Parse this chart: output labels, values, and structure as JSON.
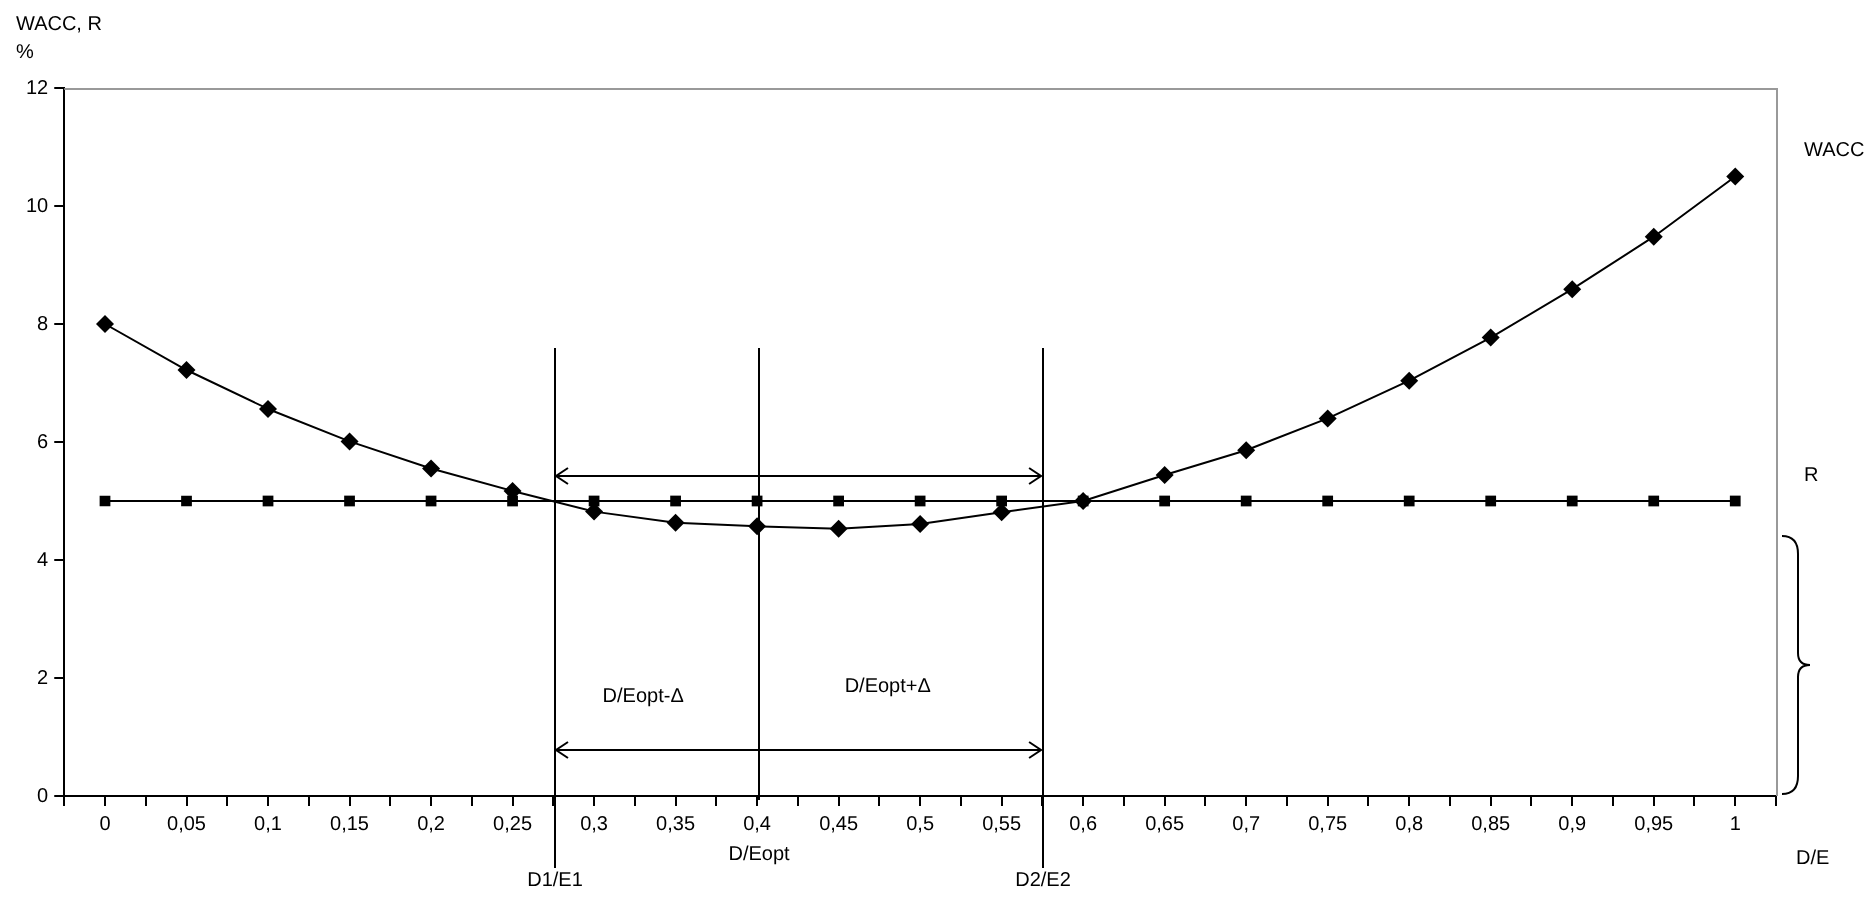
{
  "chart_data": {
    "type": "line",
    "ylabel": "WACC, R %",
    "xlabel": "D/E",
    "x": [
      0,
      0.05,
      0.1,
      0.15,
      0.2,
      0.25,
      0.3,
      0.35,
      0.4,
      0.45,
      0.5,
      0.55,
      0.6,
      0.65,
      0.7,
      0.75,
      0.8,
      0.85,
      0.9,
      0.95,
      1
    ],
    "series": [
      {
        "name": "WACC",
        "color": "#000000",
        "marker": "diamond",
        "values": [
          8.0,
          7.22,
          6.56,
          6.01,
          5.55,
          5.17,
          4.82,
          4.63,
          4.57,
          4.53,
          4.61,
          4.81,
          5.0,
          5.44,
          5.86,
          6.4,
          7.04,
          7.77,
          8.59,
          9.48,
          10.5
        ]
      },
      {
        "name": "R",
        "color": "#000000",
        "marker": "square",
        "values": [
          5,
          5,
          5,
          5,
          5,
          5,
          5,
          5,
          5,
          5,
          5,
          5,
          5,
          5,
          5,
          5,
          5,
          5,
          5,
          5,
          5
        ]
      }
    ],
    "xlim": [
      -0.025,
      1.025
    ],
    "xticks": [
      {
        "value": -0.025,
        "label": null
      },
      {
        "value": 0,
        "label": "0"
      },
      {
        "value": 0.025,
        "label": null
      },
      {
        "value": 0.05,
        "label": "0,05"
      },
      {
        "value": 0.075,
        "label": null
      },
      {
        "value": 0.1,
        "label": "0,1"
      },
      {
        "value": 0.125,
        "label": null
      },
      {
        "value": 0.15,
        "label": "0,15"
      },
      {
        "value": 0.175,
        "label": null
      },
      {
        "value": 0.2,
        "label": "0,2"
      },
      {
        "value": 0.225,
        "label": null
      },
      {
        "value": 0.25,
        "label": "0,25"
      },
      {
        "value": 0.275,
        "label": null
      },
      {
        "value": 0.3,
        "label": "0,3"
      },
      {
        "value": 0.325,
        "label": null
      },
      {
        "value": 0.35,
        "label": "0,35"
      },
      {
        "value": 0.375,
        "label": null
      },
      {
        "value": 0.4,
        "label": "0,4"
      },
      {
        "value": 0.425,
        "label": null
      },
      {
        "value": 0.45,
        "label": "0,45"
      },
      {
        "value": 0.475,
        "label": null
      },
      {
        "value": 0.5,
        "label": "0,5"
      },
      {
        "value": 0.525,
        "label": null
      },
      {
        "value": 0.55,
        "label": "0,55"
      },
      {
        "value": 0.575,
        "label": null
      },
      {
        "value": 0.6,
        "label": "0,6"
      },
      {
        "value": 0.625,
        "label": null
      },
      {
        "value": 0.65,
        "label": "0,65"
      },
      {
        "value": 0.675,
        "label": null
      },
      {
        "value": 0.7,
        "label": "0,7"
      },
      {
        "value": 0.725,
        "label": null
      },
      {
        "value": 0.75,
        "label": "0,75"
      },
      {
        "value": 0.775,
        "label": null
      },
      {
        "value": 0.8,
        "label": "0,8"
      },
      {
        "value": 0.825,
        "label": null
      },
      {
        "value": 0.85,
        "label": "0,85"
      },
      {
        "value": 0.875,
        "label": null
      },
      {
        "value": 0.9,
        "label": "0,9"
      },
      {
        "value": 0.925,
        "label": null
      },
      {
        "value": 0.95,
        "label": "0,95"
      },
      {
        "value": 0.975,
        "label": null
      },
      {
        "value": 1,
        "label": "1"
      },
      {
        "value": 1.025,
        "label": null
      }
    ],
    "ylim": [
      0,
      12
    ],
    "yticks": [
      0,
      2,
      4,
      6,
      8,
      10,
      12
    ],
    "grid": false,
    "legend": false,
    "line_style": "solid",
    "ref_lines": [
      {
        "axis": "x",
        "value": 0.275,
        "label": "D1/E1",
        "color": "#000000"
      },
      {
        "axis": "x",
        "value": 0.4,
        "label": "D/Eopt",
        "color": "#000000"
      },
      {
        "axis": "x",
        "value": 0.575,
        "label": "D2/E2",
        "color": "#000000"
      }
    ],
    "annotations": [
      "D/Eopt-Δ",
      "D/Eopt+Δ"
    ]
  }
}
